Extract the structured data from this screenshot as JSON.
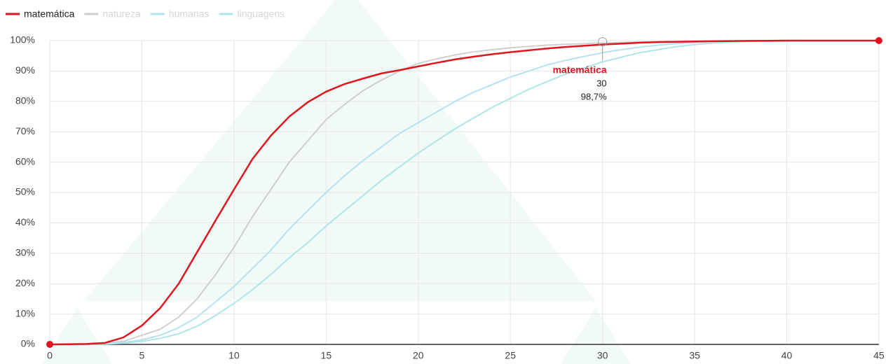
{
  "chart_data": {
    "type": "line",
    "x": [
      0,
      1,
      2,
      3,
      4,
      5,
      6,
      7,
      8,
      9,
      10,
      11,
      12,
      13,
      14,
      15,
      16,
      17,
      18,
      19,
      20,
      21,
      22,
      23,
      24,
      25,
      26,
      27,
      28,
      29,
      30,
      31,
      32,
      33,
      34,
      35,
      36,
      37,
      38,
      39,
      40,
      41,
      42,
      43,
      44,
      45
    ],
    "series": [
      {
        "name": "matemática",
        "color": "#e0151f",
        "dimmed": false,
        "values": [
          0,
          0.05,
          0.15,
          0.5,
          2.3,
          6.2,
          12,
          20,
          30.4,
          40.8,
          51,
          61,
          68.7,
          75,
          79.7,
          83.2,
          85.7,
          87.5,
          89.2,
          90.3,
          91.5,
          92.7,
          93.8,
          94.7,
          95.5,
          96.2,
          96.8,
          97.4,
          97.9,
          98.3,
          98.7,
          99,
          99.3,
          99.5,
          99.6,
          99.7,
          99.8,
          99.85,
          99.9,
          99.95,
          100,
          100,
          100,
          100,
          100,
          100
        ]
      },
      {
        "name": "natureza",
        "color": "#cfcfcf",
        "dimmed": true,
        "values": [
          0,
          0,
          0.1,
          0.3,
          1,
          3,
          5,
          9,
          15,
          23,
          32,
          42,
          51,
          60,
          67,
          74,
          79,
          83.5,
          87,
          90,
          92.5,
          94,
          95.3,
          96.3,
          97,
          97.6,
          98.1,
          98.5,
          98.8,
          99,
          99.2,
          99.4,
          99.5,
          99.6,
          99.7,
          99.8,
          99.85,
          99.9,
          99.95,
          100,
          100,
          100,
          100,
          100,
          100,
          100
        ]
      },
      {
        "name": "humanas",
        "color": "#b5e2f0",
        "dimmed": true,
        "values": [
          0,
          0,
          0.05,
          0.2,
          0.6,
          1.5,
          3,
          5.5,
          9,
          14,
          19,
          25,
          31,
          38,
          44,
          50,
          55.5,
          60.5,
          65,
          69.5,
          73,
          76.5,
          80,
          83,
          85.5,
          88,
          90,
          92,
          93.5,
          94.8,
          96,
          97,
          97.8,
          98.5,
          99,
          99.4,
          99.7,
          99.8,
          99.9,
          99.95,
          100,
          100,
          100,
          100,
          100,
          100
        ]
      },
      {
        "name": "linguagens",
        "color": "#ade6e8",
        "dimmed": true,
        "values": [
          0,
          0,
          0.05,
          0.1,
          0.4,
          1,
          2,
          3.5,
          6,
          9.5,
          13.5,
          18,
          23,
          28.5,
          33.5,
          39,
          44,
          49,
          54,
          58.5,
          63,
          67,
          71,
          74.5,
          78,
          81,
          84,
          86.5,
          89,
          91,
          93,
          94.5,
          96,
          97,
          98,
          98.7,
          99.2,
          99.5,
          99.7,
          99.8,
          99.9,
          100,
          100,
          100,
          100,
          100
        ]
      }
    ],
    "xlim": [
      0,
      45
    ],
    "xticks": [
      0,
      5,
      10,
      15,
      20,
      25,
      30,
      35,
      40,
      45
    ],
    "ylim": [
      0,
      100
    ],
    "yticks": [
      {
        "value": 0,
        "label": "0%"
      },
      {
        "value": 10,
        "label": "10%"
      },
      {
        "value": 20,
        "label": "20%"
      },
      {
        "value": 30,
        "label": "30%"
      },
      {
        "value": 40,
        "label": "40%"
      },
      {
        "value": 50,
        "label": "50%"
      },
      {
        "value": 60,
        "label": "60%"
      },
      {
        "value": 70,
        "label": "70%"
      },
      {
        "value": 80,
        "label": "80%"
      },
      {
        "value": 90,
        "label": "90%"
      },
      {
        "value": 100,
        "label": "100%"
      }
    ],
    "grid": true,
    "legend": "top-left",
    "tooltip": {
      "series": "matemática",
      "x": 30,
      "value": 98.7,
      "value_label": "98,7%"
    }
  }
}
